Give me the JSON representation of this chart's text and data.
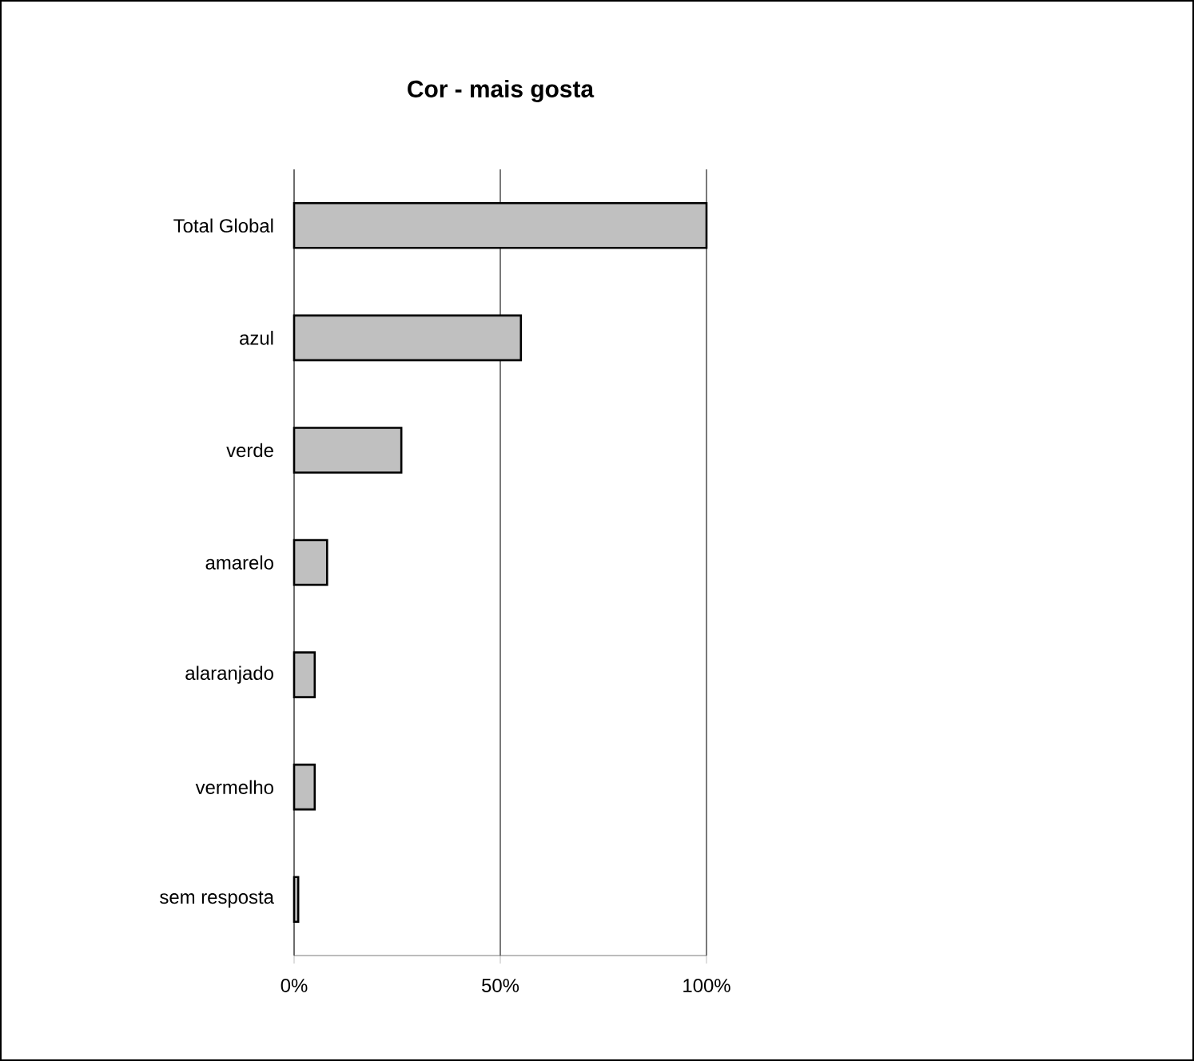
{
  "chart_data": {
    "type": "bar",
    "orientation": "horizontal",
    "title": "Cor - mais gosta",
    "categories": [
      "Total Global",
      "azul",
      "verde",
      "amarelo",
      "alaranjado",
      "vermelho",
      "sem resposta"
    ],
    "values": [
      100,
      55,
      26,
      8,
      5,
      5,
      1
    ],
    "color": "#c0c0c0",
    "xlim": [
      0,
      100
    ],
    "xticks": [
      {
        "value": 0,
        "label": "0%"
      },
      {
        "value": 50,
        "label": "50%"
      },
      {
        "value": 100,
        "label": "100%"
      }
    ],
    "grid": "x"
  }
}
